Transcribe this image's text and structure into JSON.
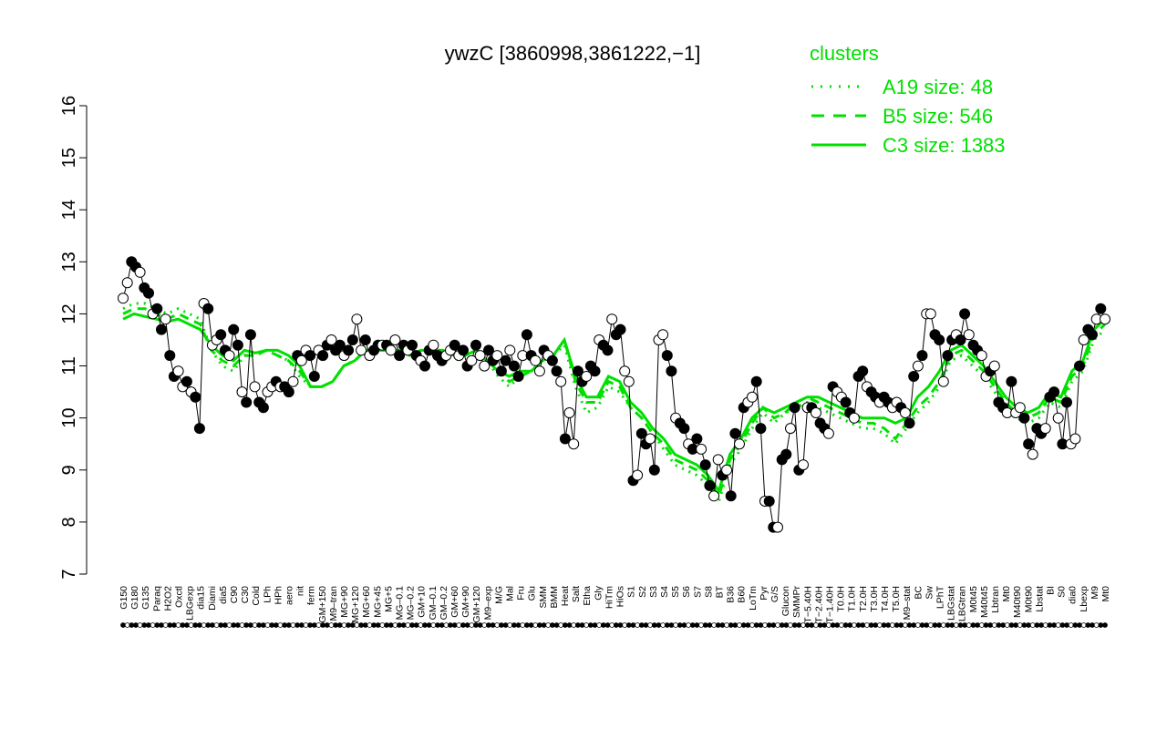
{
  "chart_data": {
    "type": "line",
    "title": "ywzC [3860998,3861222,−1]",
    "ylim": [
      7,
      16
    ],
    "yticks": [
      7,
      8,
      9,
      10,
      11,
      12,
      13,
      14,
      15,
      16
    ],
    "legend": {
      "title": "clusters",
      "placement": "top-right",
      "entries": [
        {
          "label": "A19 size: 48",
          "style": "dotted"
        },
        {
          "label": "B5 size: 546",
          "style": "dashed"
        },
        {
          "label": "C3 size: 1383",
          "style": "solid"
        }
      ]
    },
    "colors": {
      "cluster_lines": "#00e000",
      "legend_text": "#00e000",
      "points_filled": "#000000",
      "points_open": "#ffffff",
      "axis": "#000000"
    },
    "x_labels": [
      "G150",
      "G180",
      "G135",
      "Paraq",
      "H2O2",
      "Oxctl",
      "LBGexp",
      "dia15",
      "Diami",
      "dia5",
      "C90",
      "C30",
      "Cold",
      "LPh",
      "HPh",
      "aero",
      "nit",
      "ferm",
      "GM+150",
      "M9–tran",
      "MG+90",
      "MG+120",
      "MG+60",
      "MG+45",
      "MG+5",
      "MG–0.1",
      "MG–0.2",
      "GM+10",
      "GM–0.1",
      "GM–0.2",
      "GM+60",
      "GM+90",
      "GM+120",
      "M9–exp",
      "M/G",
      "Mal",
      "Fru",
      "Glu",
      "SMM",
      "BMM",
      "Heat",
      "Salt",
      "Etha",
      "Gly",
      "HiTm",
      "HiOs",
      "S1",
      "S2",
      "S3",
      "S4",
      "S5",
      "S6",
      "S7",
      "S8",
      "BT",
      "B36",
      "B60",
      "LoTm",
      "Pyr",
      "G/S",
      "Glucon",
      "SMMPr",
      "T−5.40H",
      "T−2.40H",
      "T−1.40H",
      "T0.0H",
      "T1.0H",
      "T2.0H",
      "T3.0H",
      "T4.0H",
      "T5.0H",
      "M9–stat",
      "BC",
      "Sw",
      "LPhT",
      "LBGstat",
      "LBGtran",
      "M0t45",
      "M40t45",
      "Lbtran",
      "Mt0",
      "M40t90",
      "M0t90",
      "Lbstat",
      "BI",
      "S0",
      "dia0",
      "Lbexp",
      "M9",
      "Mt0"
    ],
    "series": [
      {
        "name": "C3 size: 1383",
        "style": "solid",
        "y": [
          11.9,
          12.0,
          11.95,
          11.9,
          11.85,
          11.9,
          11.8,
          11.7,
          11.4,
          11.2,
          11.1,
          11.3,
          11.25,
          11.3,
          11.3,
          11.2,
          11.0,
          10.6,
          10.6,
          10.7,
          11.0,
          11.1,
          11.3,
          11.3,
          11.3,
          11.3,
          11.2,
          11.3,
          11.3,
          11.3,
          11.2,
          11.2,
          11.3,
          11.1,
          10.9,
          10.8,
          10.9,
          10.9,
          11.1,
          11.2,
          11.5,
          10.8,
          10.4,
          10.4,
          10.8,
          10.7,
          10.3,
          10.1,
          9.8,
          9.6,
          9.3,
          9.2,
          9.1,
          8.9,
          8.6,
          9.3,
          9.6,
          10.0,
          10.2,
          10.1,
          10.2,
          10.3,
          10.4,
          10.4,
          10.3,
          10.2,
          10.1,
          10.0,
          10.0,
          10.0,
          9.9,
          10.0,
          10.4,
          10.6,
          10.9,
          11.3,
          11.4,
          11.2,
          11.0,
          10.7,
          10.4,
          10.2,
          10.1,
          10.2,
          10.5,
          10.4,
          10.9,
          11.1,
          11.7,
          11.9
        ]
      },
      {
        "name": "B5 size: 546",
        "style": "dashed",
        "y": [
          12.0,
          12.1,
          12.1,
          12.0,
          11.9,
          12.0,
          11.9,
          11.8,
          11.3,
          11.1,
          11.0,
          11.2,
          11.2,
          11.3,
          11.2,
          11.1,
          10.9,
          10.6,
          10.6,
          10.7,
          11.0,
          11.1,
          11.3,
          11.3,
          11.3,
          11.3,
          11.2,
          11.3,
          11.3,
          11.3,
          11.2,
          11.2,
          11.3,
          11.1,
          10.9,
          10.7,
          10.8,
          10.9,
          11.1,
          11.2,
          11.5,
          10.7,
          10.3,
          10.3,
          10.7,
          10.6,
          10.2,
          10.0,
          9.7,
          9.5,
          9.2,
          9.1,
          9.0,
          8.8,
          8.5,
          9.2,
          9.5,
          9.9,
          10.2,
          10.0,
          10.1,
          10.3,
          10.4,
          10.3,
          10.2,
          10.1,
          10.0,
          9.9,
          9.9,
          9.8,
          9.6,
          9.9,
          10.2,
          10.4,
          10.7,
          11.2,
          11.3,
          11.1,
          10.9,
          10.6,
          10.3,
          10.1,
          10.0,
          10.1,
          10.4,
          10.3,
          10.8,
          11.0,
          11.6,
          11.8
        ]
      },
      {
        "name": "A19 size: 48",
        "style": "dotted",
        "y": [
          12.1,
          12.2,
          12.2,
          12.1,
          12.0,
          12.1,
          12.0,
          11.9,
          11.3,
          11.0,
          10.9,
          11.2,
          11.2,
          11.3,
          11.2,
          11.1,
          10.8,
          10.6,
          10.6,
          10.7,
          11.0,
          11.1,
          11.3,
          11.3,
          11.3,
          11.3,
          11.2,
          11.3,
          11.3,
          11.3,
          11.2,
          11.2,
          11.3,
          11.1,
          10.8,
          10.6,
          10.8,
          10.9,
          11.1,
          11.2,
          11.4,
          10.6,
          10.1,
          10.2,
          10.6,
          10.5,
          10.2,
          10.0,
          9.7,
          9.4,
          9.1,
          9.0,
          8.9,
          8.7,
          8.4,
          9.1,
          9.4,
          9.8,
          10.1,
          9.9,
          10.1,
          10.2,
          10.3,
          10.2,
          10.1,
          10.0,
          9.9,
          9.8,
          9.8,
          9.7,
          9.5,
          9.8,
          10.1,
          10.3,
          10.6,
          11.1,
          11.2,
          11.0,
          10.8,
          10.5,
          10.2,
          10.0,
          9.9,
          10.0,
          10.3,
          10.2,
          10.7,
          10.9,
          11.5,
          11.7
        ]
      }
    ],
    "samples": [
      [
        12.3,
        12.6,
        13.0,
        12.9,
        12.8,
        12.5,
        12.4,
        12.0,
        12.1,
        11.7,
        11.9,
        11.2,
        10.8,
        10.9,
        10.6,
        10.7,
        10.5,
        10.4,
        9.8,
        12.2,
        12.1,
        11.4,
        11.5,
        11.6,
        11.3,
        11.2,
        11.7,
        11.4,
        10.5,
        10.3,
        11.6,
        10.6,
        10.3,
        10.2,
        10.5,
        10.6,
        10.7,
        10.6,
        10.6,
        10.5,
        10.7,
        11.2,
        11.1,
        11.3,
        11.2,
        10.8,
        11.3,
        11.2,
        11.4,
        11.5,
        11.3,
        11.4,
        11.2,
        11.3,
        11.5,
        11.9,
        11.3,
        11.5,
        11.2,
        11.3,
        11.4,
        11.4,
        11.4,
        11.3,
        11.5,
        11.2,
        11.4,
        11.3,
        11.4,
        11.2,
        11.1,
        11.0,
        11.3,
        11.4,
        11.2,
        11.1,
        11.2,
        11.3,
        11.4,
        11.2,
        11.3,
        11.0,
        11.1,
        11.4,
        11.2,
        11.0,
        11.3,
        11.1,
        11.2,
        10.9,
        11.1,
        11.3,
        11.0,
        10.8,
        11.2,
        11.6,
        11.2,
        11.1,
        10.9,
        11.3,
        11.2,
        11.1,
        10.9,
        10.7,
        9.6,
        10.1,
        9.5,
        10.9,
        10.7,
        10.8,
        11.0,
        10.9,
        11.5,
        11.4,
        11.3,
        11.9,
        11.6,
        11.7,
        10.9,
        10.7,
        8.8,
        8.9,
        9.7,
        9.5,
        9.6,
        9.0,
        11.5,
        11.6,
        11.2,
        10.9,
        10.0,
        9.9,
        9.8,
        9.5,
        9.4,
        9.6,
        9.4,
        9.1,
        8.7,
        8.5,
        9.2,
        8.9,
        9.0,
        8.5,
        9.7,
        9.5,
        10.2,
        10.3,
        10.4,
        10.7,
        9.8,
        8.4,
        8.4,
        7.9,
        7.9,
        9.2,
        9.3,
        9.8,
        10.2,
        9.0,
        9.1,
        10.2,
        10.2,
        10.1,
        9.9,
        9.8,
        9.7,
        10.6,
        10.5,
        10.4,
        10.3,
        10.1,
        10.0,
        10.8,
        10.9,
        10.6,
        10.5,
        10.4,
        10.3,
        10.4,
        10.3,
        10.2,
        10.3,
        10.2,
        10.1,
        9.9,
        10.8,
        11.0,
        11.2,
        12.0,
        12.0,
        11.6,
        11.5,
        10.7,
        11.2,
        11.5,
        11.6,
        11.5,
        12.0,
        11.6,
        11.4,
        11.3,
        11.2,
        10.8,
        10.9,
        11.0,
        10.3,
        10.2,
        10.1,
        10.7,
        10.1,
        10.2,
        10.0,
        9.5,
        9.3,
        9.8,
        9.7,
        9.8,
        10.4,
        10.5,
        10.0,
        9.5,
        10.3,
        9.5,
        9.6,
        11.0,
        11.5,
        11.7,
        11.6,
        11.9,
        12.1,
        11.9
      ]
    ],
    "sample_fill": "mixed"
  }
}
